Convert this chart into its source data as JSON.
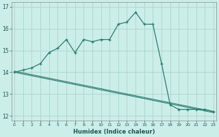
{
  "title": "",
  "xlabel": "Humidex (Indice chaleur)",
  "bg_color": "#cceee8",
  "grid_color": "#aad8d0",
  "line_color": "#2a7a6a",
  "xlim": [
    0,
    23
  ],
  "ylim": [
    11.8,
    17.2
  ],
  "xticks": [
    0,
    1,
    2,
    3,
    4,
    5,
    6,
    7,
    8,
    9,
    10,
    11,
    12,
    13,
    14,
    15,
    16,
    17,
    18,
    19,
    20,
    21,
    22,
    23
  ],
  "yticks": [
    12,
    13,
    14,
    15,
    16,
    17
  ],
  "line1_x": [
    0,
    1,
    2,
    3,
    4,
    5,
    6,
    7,
    8,
    9,
    10,
    11,
    12,
    13,
    14,
    15,
    16,
    17,
    18,
    19,
    20,
    21,
    22,
    23
  ],
  "line1_y": [
    14.0,
    14.1,
    14.2,
    14.4,
    14.9,
    15.1,
    15.5,
    14.9,
    15.5,
    15.4,
    15.5,
    15.5,
    16.2,
    16.3,
    16.75,
    16.2,
    16.2,
    14.4,
    12.5,
    12.3,
    12.3,
    12.3,
    12.3,
    12.2
  ],
  "line2_x": [
    0,
    23
  ],
  "line2_y": [
    14.05,
    12.2
  ],
  "line3_x": [
    0,
    23
  ],
  "line3_y": [
    14.0,
    12.15
  ]
}
